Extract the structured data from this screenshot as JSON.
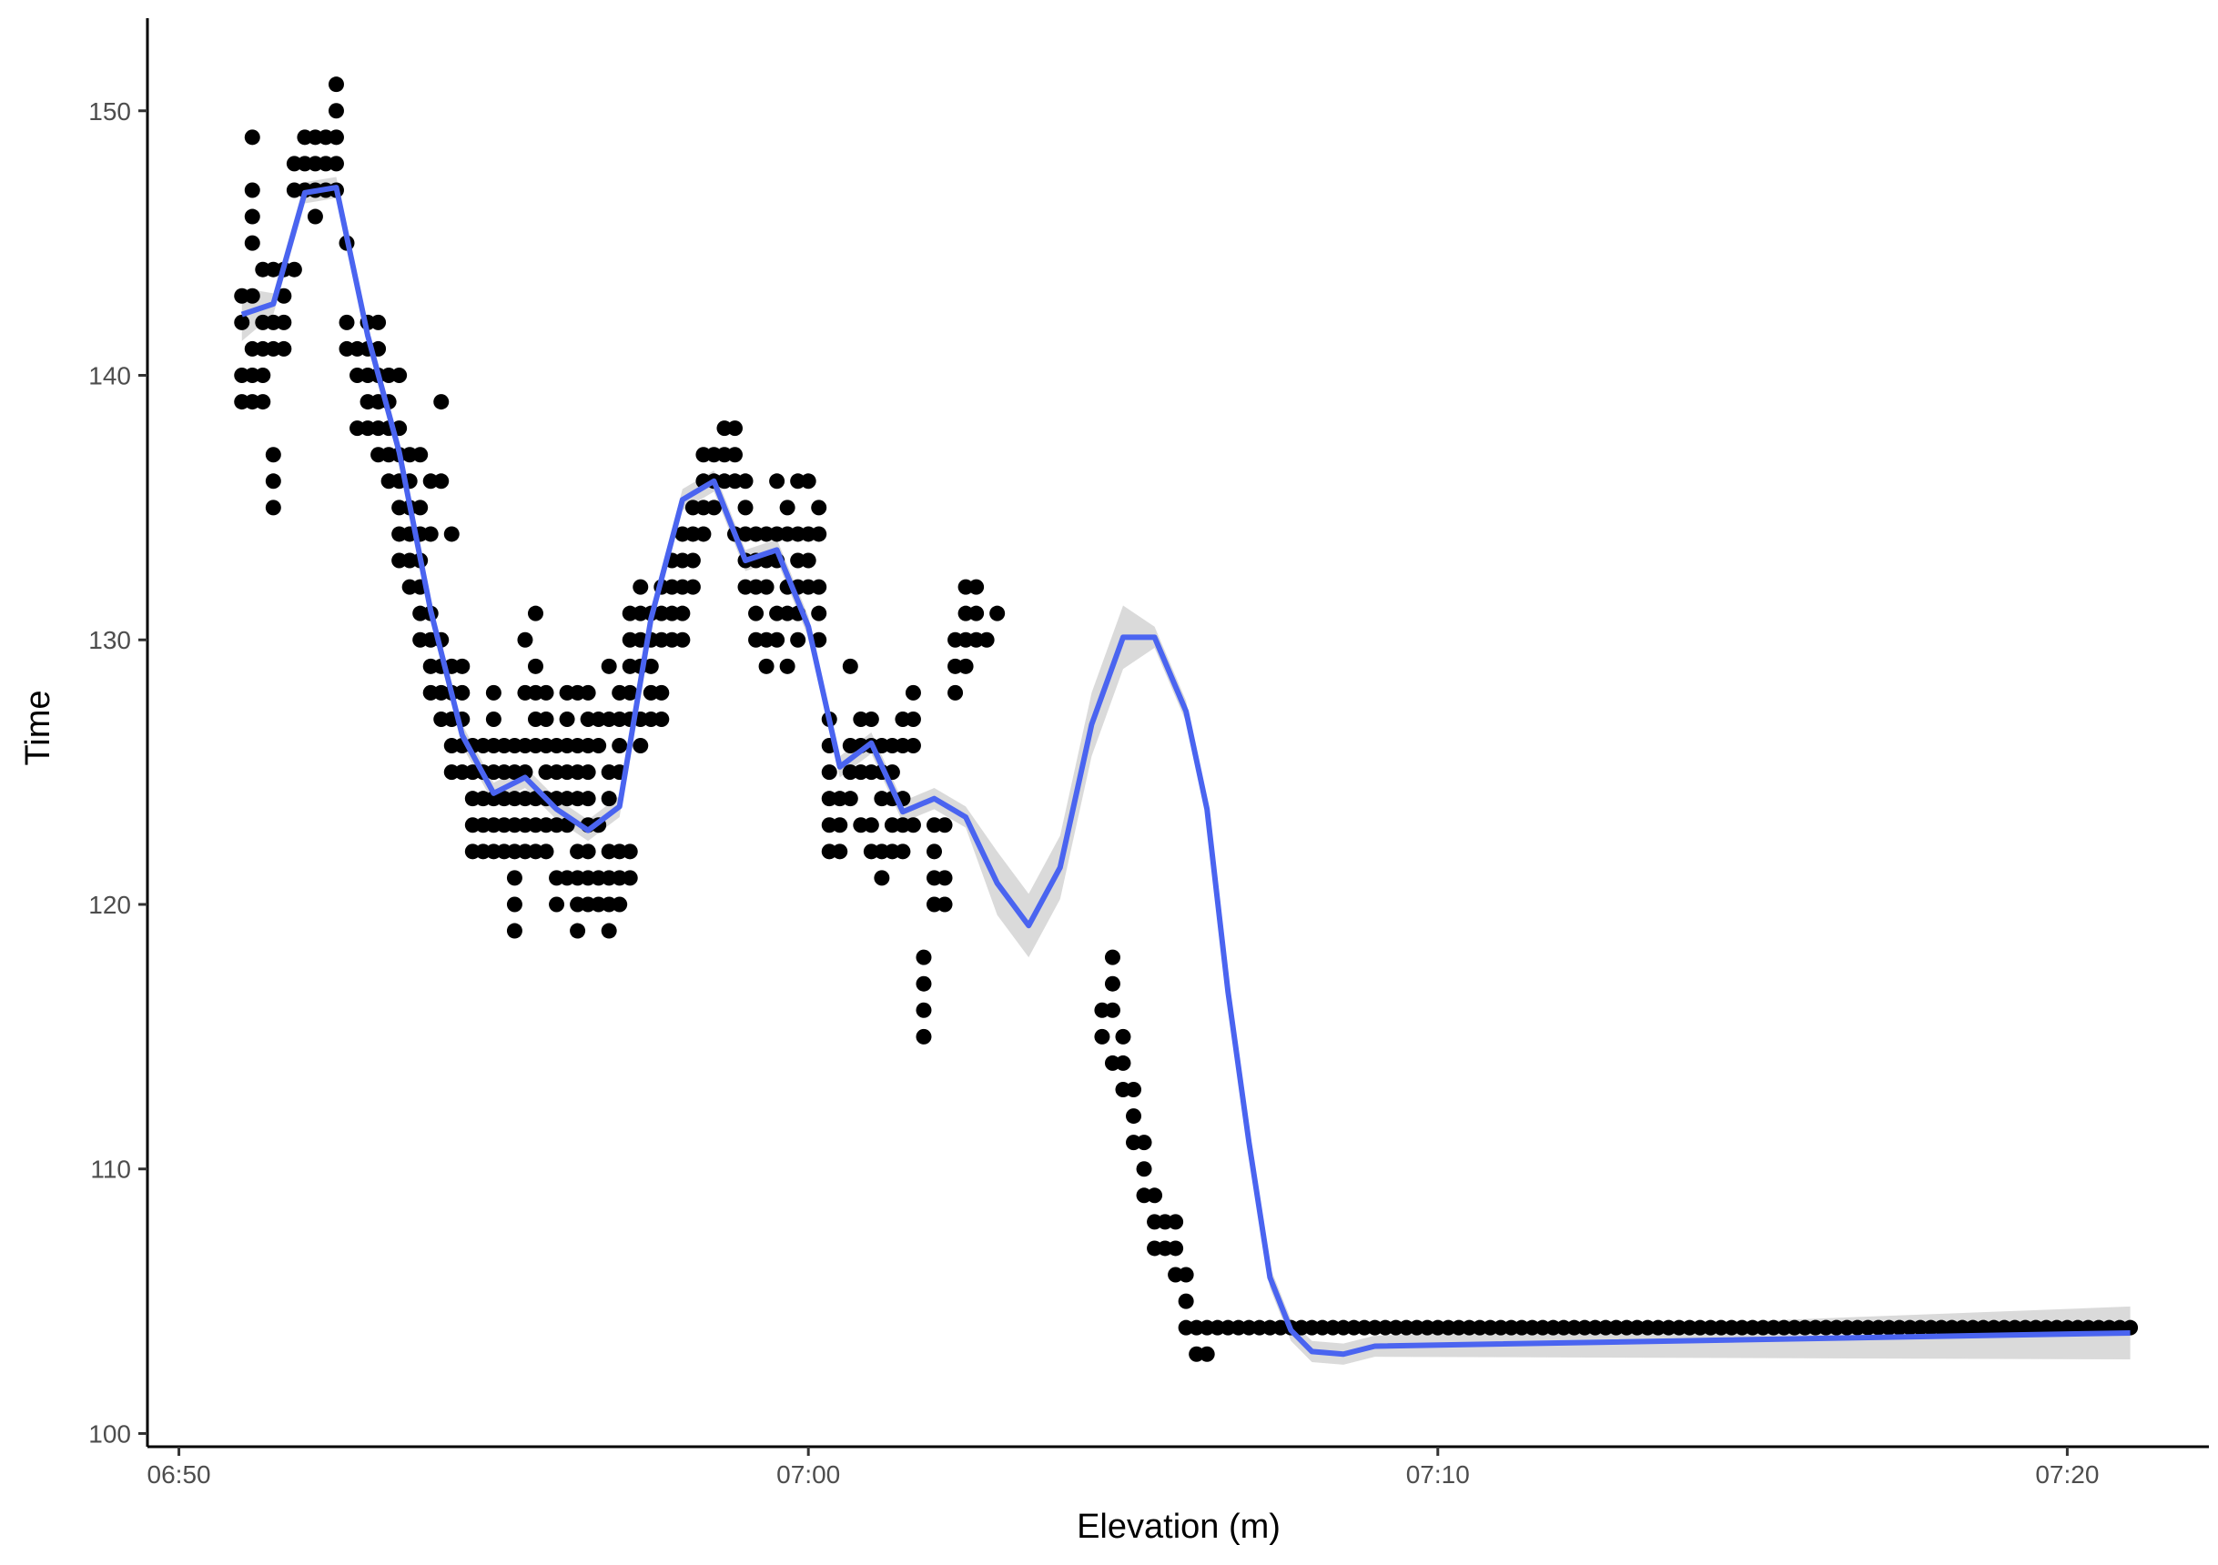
{
  "chart_data": {
    "type": "scatter",
    "xlabel": "Elevation (m)",
    "ylabel": "Time",
    "x_ticks": [
      "06:50",
      "07:00",
      "07:10",
      "07:20"
    ],
    "y_ticks": [
      100,
      110,
      120,
      130,
      140,
      150
    ],
    "xlim": [
      "06:49:30",
      "07:22:15"
    ],
    "ylim": [
      99.5,
      153.5
    ],
    "grid": false,
    "legend": "none",
    "colors": {
      "points": "#000000",
      "smooth_line": "#4a64f0",
      "confidence_band": "#d3d3d3"
    },
    "points": [
      {
        "x": "06:51:00",
        "y": [
          143,
          142,
          140,
          139
        ]
      },
      {
        "x": "06:51:10",
        "y": [
          149,
          147,
          146,
          145,
          143,
          141,
          140,
          139
        ]
      },
      {
        "x": "06:51:20",
        "y": [
          144,
          142,
          141,
          140,
          139
        ]
      },
      {
        "x": "06:51:30",
        "y": [
          144,
          142,
          141,
          137,
          136,
          135
        ]
      },
      {
        "x": "06:51:40",
        "y": [
          144,
          143,
          142,
          141
        ]
      },
      {
        "x": "06:51:50",
        "y": [
          148,
          147,
          144
        ]
      },
      {
        "x": "06:52:00",
        "y": [
          149,
          148,
          147
        ]
      },
      {
        "x": "06:52:10",
        "y": [
          149,
          148,
          147,
          146
        ]
      },
      {
        "x": "06:52:20",
        "y": [
          149,
          148,
          147
        ]
      },
      {
        "x": "06:52:30",
        "y": [
          151,
          150,
          149,
          148,
          147
        ]
      },
      {
        "x": "06:52:40",
        "y": [
          145,
          142,
          141
        ]
      },
      {
        "x": "06:52:50",
        "y": [
          141,
          140,
          138
        ]
      },
      {
        "x": "06:53:00",
        "y": [
          142,
          141,
          140,
          139,
          138
        ]
      },
      {
        "x": "06:53:10",
        "y": [
          142,
          141,
          140,
          139,
          138,
          137
        ]
      },
      {
        "x": "06:53:20",
        "y": [
          140,
          139,
          138,
          137,
          136
        ]
      },
      {
        "x": "06:53:30",
        "y": [
          140,
          138,
          137,
          136,
          135,
          134,
          133
        ]
      },
      {
        "x": "06:53:40",
        "y": [
          137,
          136,
          135,
          134,
          133,
          132
        ]
      },
      {
        "x": "06:53:50",
        "y": [
          137,
          135,
          134,
          133,
          132,
          131,
          130
        ]
      },
      {
        "x": "06:54:00",
        "y": [
          136,
          134,
          131,
          130,
          129,
          128
        ]
      },
      {
        "x": "06:54:10",
        "y": [
          139,
          136,
          130,
          129,
          128,
          127
        ]
      },
      {
        "x": "06:54:20",
        "y": [
          134,
          129,
          128,
          127,
          126,
          125
        ]
      },
      {
        "x": "06:54:30",
        "y": [
          129,
          128,
          127,
          126,
          125
        ]
      },
      {
        "x": "06:54:40",
        "y": [
          126,
          125,
          124,
          123,
          122
        ]
      },
      {
        "x": "06:54:50",
        "y": [
          126,
          125,
          124,
          123,
          122
        ]
      },
      {
        "x": "06:55:00",
        "y": [
          128,
          127,
          126,
          125,
          124,
          123,
          122
        ]
      },
      {
        "x": "06:55:10",
        "y": [
          126,
          125,
          124,
          123,
          122
        ]
      },
      {
        "x": "06:55:20",
        "y": [
          126,
          125,
          124,
          123,
          122,
          121,
          120,
          119
        ]
      },
      {
        "x": "06:55:30",
        "y": [
          130,
          128,
          126,
          125,
          124,
          123,
          122
        ]
      },
      {
        "x": "06:55:40",
        "y": [
          131,
          129,
          128,
          127,
          126,
          124,
          123,
          122
        ]
      },
      {
        "x": "06:55:50",
        "y": [
          128,
          127,
          126,
          125,
          124,
          123,
          122
        ]
      },
      {
        "x": "06:56:00",
        "y": [
          126,
          125,
          124,
          123,
          121,
          120
        ]
      },
      {
        "x": "06:56:10",
        "y": [
          128,
          127,
          126,
          125,
          124,
          123,
          121
        ]
      },
      {
        "x": "06:56:20",
        "y": [
          128,
          126,
          125,
          124,
          122,
          121,
          120,
          119
        ]
      },
      {
        "x": "06:56:30",
        "y": [
          128,
          127,
          126,
          125,
          124,
          123,
          122,
          121,
          120
        ]
      },
      {
        "x": "06:56:40",
        "y": [
          127,
          126,
          123,
          121,
          120
        ]
      },
      {
        "x": "06:56:50",
        "y": [
          129,
          127,
          125,
          124,
          122,
          121,
          120,
          119
        ]
      },
      {
        "x": "06:57:00",
        "y": [
          128,
          127,
          126,
          125,
          122,
          121,
          120
        ]
      },
      {
        "x": "06:57:10",
        "y": [
          131,
          130,
          129,
          128,
          127,
          122,
          121
        ]
      },
      {
        "x": "06:57:20",
        "y": [
          132,
          131,
          130,
          129,
          127,
          126
        ]
      },
      {
        "x": "06:57:30",
        "y": [
          131,
          130,
          129,
          128,
          127
        ]
      },
      {
        "x": "06:57:40",
        "y": [
          132,
          131,
          130,
          128,
          127
        ]
      },
      {
        "x": "06:57:50",
        "y": [
          133,
          132,
          131,
          130
        ]
      },
      {
        "x": "06:58:00",
        "y": [
          134,
          133,
          132,
          131,
          130
        ]
      },
      {
        "x": "06:58:10",
        "y": [
          135,
          134,
          133,
          132
        ]
      },
      {
        "x": "06:58:20",
        "y": [
          137,
          136,
          135,
          134
        ]
      },
      {
        "x": "06:58:30",
        "y": [
          137,
          136,
          135
        ]
      },
      {
        "x": "06:58:40",
        "y": [
          138,
          137,
          136
        ]
      },
      {
        "x": "06:58:50",
        "y": [
          138,
          137,
          136,
          134
        ]
      },
      {
        "x": "06:59:00",
        "y": [
          136,
          135,
          134,
          133,
          132
        ]
      },
      {
        "x": "06:59:10",
        "y": [
          134,
          133,
          132,
          131,
          130
        ]
      },
      {
        "x": "06:59:20",
        "y": [
          134,
          133,
          132,
          130,
          129
        ]
      },
      {
        "x": "06:59:30",
        "y": [
          136,
          134,
          133,
          131,
          130
        ]
      },
      {
        "x": "06:59:40",
        "y": [
          135,
          134,
          132,
          131,
          129
        ]
      },
      {
        "x": "06:59:50",
        "y": [
          136,
          134,
          133,
          132,
          131,
          130
        ]
      },
      {
        "x": "07:00:00",
        "y": [
          136,
          134,
          133,
          132
        ]
      },
      {
        "x": "07:00:10",
        "y": [
          135,
          134,
          132,
          131,
          130
        ]
      },
      {
        "x": "07:00:20",
        "y": [
          127,
          126,
          125,
          124,
          123,
          122
        ]
      },
      {
        "x": "07:00:30",
        "y": [
          124,
          123,
          122
        ]
      },
      {
        "x": "07:00:40",
        "y": [
          129,
          126,
          125,
          124
        ]
      },
      {
        "x": "07:00:50",
        "y": [
          127,
          126,
          125,
          123
        ]
      },
      {
        "x": "07:01:00",
        "y": [
          127,
          126,
          125,
          123,
          122
        ]
      },
      {
        "x": "07:01:10",
        "y": [
          126,
          125,
          124,
          122,
          121
        ]
      },
      {
        "x": "07:01:20",
        "y": [
          126,
          125,
          124,
          123,
          122
        ]
      },
      {
        "x": "07:01:30",
        "y": [
          127,
          126,
          124,
          123,
          122
        ]
      },
      {
        "x": "07:01:40",
        "y": [
          128,
          127,
          126,
          123
        ]
      },
      {
        "x": "07:01:50",
        "y": [
          118,
          117,
          116,
          115
        ]
      },
      {
        "x": "07:02:00",
        "y": [
          123,
          122,
          121,
          120
        ]
      },
      {
        "x": "07:02:10",
        "y": [
          123,
          121,
          120
        ]
      },
      {
        "x": "07:02:20",
        "y": [
          130,
          129,
          128
        ]
      },
      {
        "x": "07:02:30",
        "y": [
          132,
          131,
          130,
          129
        ]
      },
      {
        "x": "07:02:40",
        "y": [
          132,
          131,
          130
        ]
      },
      {
        "x": "07:02:50",
        "y": [
          130
        ]
      },
      {
        "x": "07:03:00",
        "y": [
          131
        ]
      },
      {
        "x": "07:04:40",
        "y": [
          116,
          115
        ]
      },
      {
        "x": "07:04:50",
        "y": [
          118,
          117,
          116,
          114
        ]
      },
      {
        "x": "07:05:00",
        "y": [
          115,
          114,
          113
        ]
      },
      {
        "x": "07:05:10",
        "y": [
          113,
          112,
          111
        ]
      },
      {
        "x": "07:05:20",
        "y": [
          111,
          110,
          109
        ]
      },
      {
        "x": "07:05:30",
        "y": [
          109,
          108,
          107
        ]
      },
      {
        "x": "07:05:40",
        "y": [
          108,
          107
        ]
      },
      {
        "x": "07:05:50",
        "y": [
          108,
          107,
          106
        ]
      },
      {
        "x": "07:06:00",
        "y": [
          106,
          105,
          104
        ]
      },
      {
        "x": "07:06:10",
        "y": [
          104,
          103
        ]
      },
      {
        "x": "07:06:20",
        "y": [
          103
        ]
      }
    ],
    "constant_run": {
      "x_from": "07:06:20",
      "x_to": "07:21:00",
      "y": 104
    },
    "smooth": {
      "x": [
        "06:51:00",
        "06:51:30",
        "06:52:00",
        "06:52:30",
        "06:53:00",
        "06:53:30",
        "06:54:00",
        "06:54:30",
        "06:55:00",
        "06:55:30",
        "06:56:00",
        "06:56:30",
        "06:57:00",
        "06:57:30",
        "06:58:00",
        "06:58:30",
        "06:59:00",
        "06:59:30",
        "07:00:00",
        "07:00:30",
        "07:01:00",
        "07:01:30",
        "07:02:00",
        "07:02:30",
        "07:03:00",
        "07:03:30",
        "07:04:00",
        "07:04:30",
        "07:05:00",
        "07:05:30",
        "07:06:00",
        "07:06:20",
        "07:06:40",
        "07:07:00",
        "07:07:20",
        "07:07:40",
        "07:08:00",
        "07:08:30",
        "07:09:00",
        "07:21:00"
      ],
      "y": [
        142.3,
        142.7,
        146.9,
        147.1,
        141.5,
        137.1,
        131.1,
        126.4,
        124.2,
        124.8,
        123.6,
        122.8,
        123.7,
        130.8,
        135.3,
        136.0,
        133.0,
        133.4,
        130.5,
        125.2,
        126.1,
        123.5,
        124.0,
        123.3,
        120.8,
        119.2,
        121.4,
        126.8,
        130.1,
        130.1,
        127.3,
        123.6,
        116.7,
        111.0,
        105.9,
        103.9,
        103.1,
        103.0,
        103.3,
        103.8
      ]
    }
  }
}
